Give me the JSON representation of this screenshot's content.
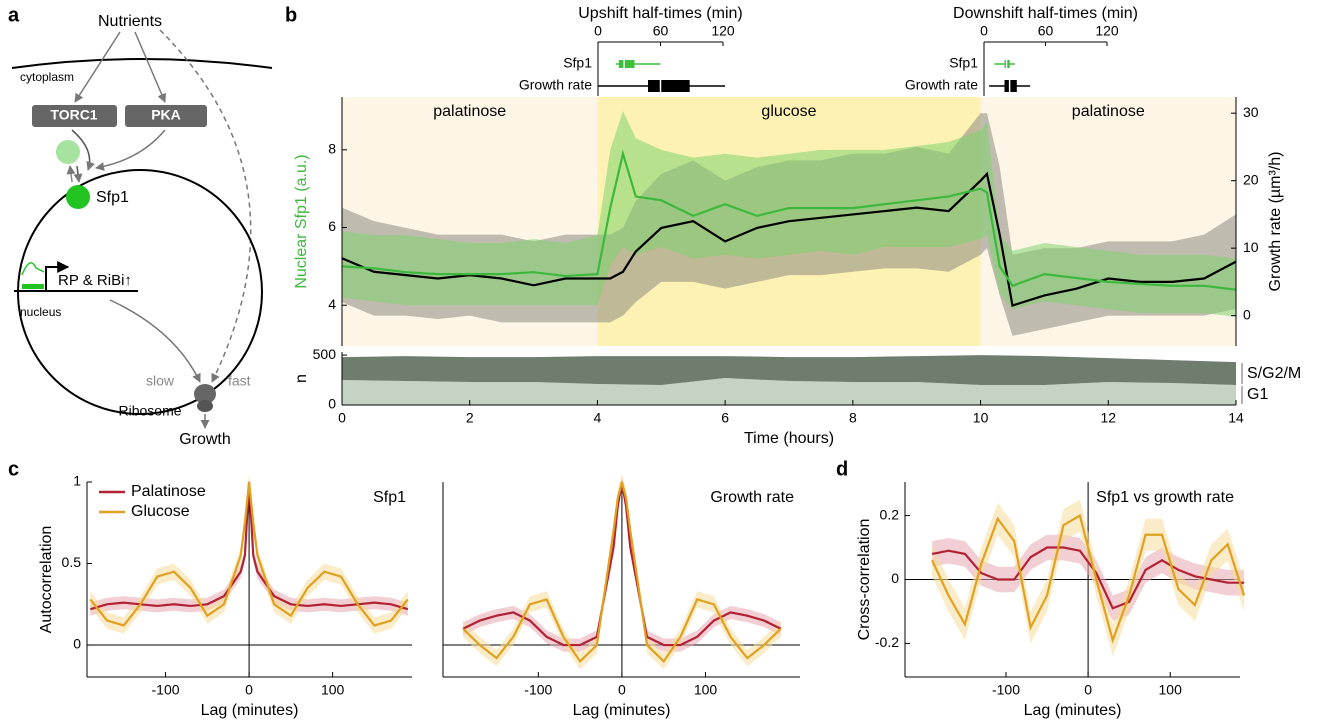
{
  "panel_labels": [
    "a",
    "b",
    "c",
    "d"
  ],
  "diagram": {
    "nutrients": "Nutrients",
    "cytoplasm": "cytoplasm",
    "torc1": "TORC1",
    "pka": "PKA",
    "sfp1": "Sfp1",
    "genes": "RP & RiBi↑",
    "nucleus": "nucleus",
    "slow": "slow",
    "fast": "fast",
    "ribosome": "Ribosome",
    "growth": "Growth"
  },
  "chart_data": [
    {
      "type": "box",
      "title": "Upshift half-times (min)",
      "categories": [
        "Sfp1",
        "Growth rate"
      ],
      "xlim": [
        0,
        120
      ],
      "xticks": [
        0,
        60,
        120
      ],
      "boxes": [
        {
          "whislo": 17,
          "q1": 20,
          "med": 25,
          "q3": 35,
          "whishi": 60,
          "color": "#3cbf3c"
        },
        {
          "whislo": 0,
          "q1": 48,
          "med": 60,
          "q3": 88,
          "whishi": 122,
          "color": "#000000"
        }
      ]
    },
    {
      "type": "box",
      "title": "Downshift half-times (min)",
      "categories": [
        "Sfp1",
        "Growth rate"
      ],
      "xlim": [
        0,
        120
      ],
      "xticks": [
        0,
        60,
        120
      ],
      "boxes": [
        {
          "whislo": 10,
          "q1": 20,
          "med": 22,
          "q3": 25,
          "whishi": 30,
          "color": "#3cbf3c"
        },
        {
          "whislo": 5,
          "q1": 20,
          "med": 25,
          "q3": 32,
          "whishi": 45,
          "color": "#000000"
        }
      ]
    },
    {
      "type": "line",
      "ylabel": "Nuclear Sfp1 (a.u.)",
      "y2label": "Growth rate (µm³/h)",
      "xlim": [
        0,
        14
      ],
      "ylim": [
        2.95,
        9.36
      ],
      "yticks": [
        4,
        6,
        8
      ],
      "y2lim": [
        -4.5,
        32.4
      ],
      "y2ticks": [
        0,
        10,
        20,
        30
      ],
      "regions": [
        {
          "label": "palatinose",
          "start": 0,
          "end": 4,
          "color": "#fdf5e6"
        },
        {
          "label": "glucose",
          "start": 4,
          "end": 10,
          "color": "#fdf2b4"
        },
        {
          "label": "palatinose",
          "start": 10,
          "end": 14,
          "color": "#fdf5e6"
        }
      ],
      "x": [
        0,
        0.5,
        1,
        1.5,
        2,
        2.5,
        3,
        3.5,
        4,
        4.2,
        4.4,
        4.6,
        5,
        5.5,
        6,
        6.5,
        7,
        7.5,
        8,
        8.5,
        9,
        9.5,
        10,
        10.1,
        10.3,
        10.5,
        11,
        11.5,
        12,
        12.5,
        13,
        13.5,
        14
      ],
      "series": [
        {
          "axis": "y2",
          "color": "#000000",
          "band_color": "#8c8a80",
          "values": [
            8.5,
            6.5,
            6.0,
            5.5,
            6.0,
            5.5,
            4.5,
            5.5,
            5.5,
            5.5,
            6.5,
            9.5,
            13,
            14,
            11,
            13,
            14,
            14.5,
            15,
            15.5,
            16,
            15.5,
            20,
            21,
            12,
            1.5,
            3,
            4,
            5.5,
            5,
            5,
            5.5,
            8
          ],
          "lower": [
            2,
            0,
            0,
            -0.5,
            0,
            -1,
            -1,
            -1,
            -1,
            -1,
            0,
            2,
            5,
            5,
            4,
            5,
            6,
            6,
            6.5,
            7,
            7,
            6.5,
            9,
            10,
            3,
            -3,
            -2,
            -1,
            0,
            0,
            0,
            0,
            1
          ],
          "upper": [
            16,
            14,
            13,
            12,
            12,
            12,
            11,
            12,
            12,
            12,
            13,
            17,
            21,
            23,
            20,
            22,
            23,
            23,
            24,
            24,
            25,
            24,
            30,
            30,
            22,
            9,
            10,
            10,
            11,
            11,
            11,
            12,
            15
          ]
        },
        {
          "color": "#3cb93c",
          "band_color": "#7fd36f",
          "values": [
            5.0,
            4.95,
            4.85,
            4.8,
            4.8,
            4.8,
            4.85,
            4.75,
            4.8,
            6.5,
            7.9,
            6.8,
            6.7,
            6.3,
            6.6,
            6.3,
            6.5,
            6.5,
            6.5,
            6.6,
            6.7,
            6.8,
            7.0,
            6.9,
            5.0,
            4.5,
            4.8,
            4.7,
            4.6,
            4.55,
            4.5,
            4.5,
            4.4
          ],
          "lower": [
            4.2,
            4.1,
            4.0,
            4.0,
            4.0,
            4.0,
            4.0,
            4.0,
            4.0,
            5.0,
            5.5,
            5.3,
            5.5,
            5.2,
            5.3,
            5.2,
            5.3,
            5.4,
            5.3,
            5.5,
            5.5,
            5.5,
            5.7,
            5.8,
            4.3,
            3.9,
            4.1,
            4.0,
            3.9,
            3.8,
            3.8,
            3.8,
            3.7
          ],
          "upper": [
            5.9,
            5.8,
            5.8,
            5.7,
            5.6,
            5.6,
            5.7,
            5.6,
            5.8,
            8.0,
            9.0,
            8.3,
            8.0,
            7.8,
            7.9,
            7.8,
            7.9,
            8.0,
            8.0,
            8.0,
            8.1,
            8.2,
            8.5,
            8.7,
            5.8,
            5.4,
            5.6,
            5.5,
            5.4,
            5.3,
            5.3,
            5.3,
            5.2
          ]
        }
      ]
    },
    {
      "type": "area",
      "ylabel": "n",
      "xlabel": "Time (hours)",
      "xlim": [
        0,
        14
      ],
      "xticks": [
        0,
        2,
        4,
        6,
        8,
        10,
        12,
        14
      ],
      "ylim": [
        0,
        531
      ],
      "yticks": [
        0,
        500
      ],
      "x": [
        0,
        1,
        2,
        3,
        4,
        5,
        6,
        7,
        8,
        9,
        10,
        11,
        12,
        13,
        14
      ],
      "series": [
        {
          "name": "G1",
          "color": "#c5d3c5",
          "values": [
            250,
            240,
            230,
            230,
            210,
            200,
            270,
            240,
            230,
            230,
            200,
            200,
            230,
            220,
            200
          ]
        },
        {
          "name": "S/G2/M",
          "color": "#6f7d6f",
          "values": [
            230,
            250,
            250,
            250,
            280,
            290,
            220,
            240,
            250,
            260,
            300,
            290,
            240,
            230,
            230
          ]
        }
      ]
    },
    {
      "type": "line",
      "title": "Sfp1",
      "ylabel": "Autocorrelation",
      "xlabel": "Lag (minutes)",
      "legend": "upper left",
      "xlim": [
        -194,
        195
      ],
      "xticks": [
        -100,
        0,
        100
      ],
      "ylim": [
        -0.196,
        1
      ],
      "yticks": [
        0,
        0.5,
        1
      ],
      "x": [
        -190,
        -170,
        -150,
        -130,
        -110,
        -90,
        -70,
        -50,
        -30,
        -10,
        -5,
        0,
        5,
        10,
        30,
        50,
        70,
        90,
        110,
        130,
        150,
        170,
        190
      ],
      "series": [
        {
          "name": "Palatinose",
          "color": "#b22234",
          "band_color": "#e6a7b0",
          "error": 0.04,
          "values": [
            0.22,
            0.25,
            0.26,
            0.25,
            0.24,
            0.25,
            0.24,
            0.25,
            0.3,
            0.45,
            0.55,
            1,
            0.55,
            0.45,
            0.3,
            0.25,
            0.24,
            0.25,
            0.24,
            0.25,
            0.26,
            0.25,
            0.22
          ]
        },
        {
          "name": "Glucose",
          "color": "#e0a020",
          "band_color": "#f5dc9a",
          "error": 0.05,
          "values": [
            0.28,
            0.15,
            0.12,
            0.25,
            0.42,
            0.45,
            0.35,
            0.18,
            0.25,
            0.55,
            0.75,
            1,
            0.75,
            0.55,
            0.25,
            0.18,
            0.35,
            0.45,
            0.42,
            0.25,
            0.12,
            0.15,
            0.28
          ]
        }
      ]
    },
    {
      "type": "line",
      "title": "Growth rate",
      "xlabel": "Lag (minutes)",
      "xlim": [
        -214,
        213
      ],
      "xticks": [
        -100,
        0,
        100
      ],
      "ylim": [
        -0.196,
        1
      ],
      "x": [
        -190,
        -170,
        -150,
        -130,
        -110,
        -90,
        -70,
        -50,
        -30,
        -10,
        -5,
        0,
        5,
        10,
        30,
        50,
        70,
        90,
        110,
        130,
        150,
        170,
        190
      ],
      "series": [
        {
          "color": "#b22234",
          "band_color": "#e6a7b0",
          "error": 0.04,
          "values": [
            0.1,
            0.15,
            0.18,
            0.2,
            0.15,
            0.05,
            0.0,
            0.0,
            0.05,
            0.6,
            0.85,
            1,
            0.85,
            0.6,
            0.05,
            0.0,
            0.0,
            0.05,
            0.15,
            0.2,
            0.18,
            0.15,
            0.1
          ]
        },
        {
          "color": "#e0a020",
          "band_color": "#f5dc9a",
          "error": 0.05,
          "values": [
            0.1,
            0.0,
            -0.08,
            0.05,
            0.25,
            0.28,
            0.05,
            -0.1,
            0.0,
            0.7,
            0.9,
            1,
            0.9,
            0.7,
            0.0,
            -0.1,
            0.05,
            0.28,
            0.25,
            0.05,
            -0.08,
            0.0,
            0.1
          ]
        }
      ]
    },
    {
      "type": "line",
      "title": "Sfp1 vs growth rate",
      "ylabel": "Cross-correlation",
      "xlabel": "Lag (minutes)",
      "xlim": [
        -223,
        185
      ],
      "xticks": [
        -100,
        0,
        100
      ],
      "ylim": [
        -0.305,
        0.305
      ],
      "yticks": [
        -0.2,
        0,
        0.2
      ],
      "x": [
        -190,
        -170,
        -150,
        -130,
        -110,
        -90,
        -70,
        -50,
        -30,
        -10,
        10,
        30,
        50,
        70,
        90,
        110,
        130,
        150,
        170,
        190
      ],
      "series": [
        {
          "color": "#b22234",
          "band_color": "#e6a7b0",
          "error": 0.04,
          "values": [
            0.08,
            0.09,
            0.08,
            0.02,
            0.0,
            0.0,
            0.07,
            0.1,
            0.1,
            0.09,
            0.02,
            -0.09,
            -0.07,
            0.03,
            0.06,
            0.03,
            0.01,
            0.0,
            -0.01,
            -0.01
          ]
        },
        {
          "color": "#e0a020",
          "band_color": "#f5dc9a",
          "error": 0.05,
          "values": [
            0.06,
            -0.05,
            -0.14,
            0.05,
            0.19,
            0.12,
            -0.15,
            -0.05,
            0.17,
            0.2,
            0.0,
            -0.19,
            -0.05,
            0.14,
            0.14,
            -0.03,
            -0.08,
            0.06,
            0.11,
            -0.05
          ]
        }
      ]
    }
  ]
}
